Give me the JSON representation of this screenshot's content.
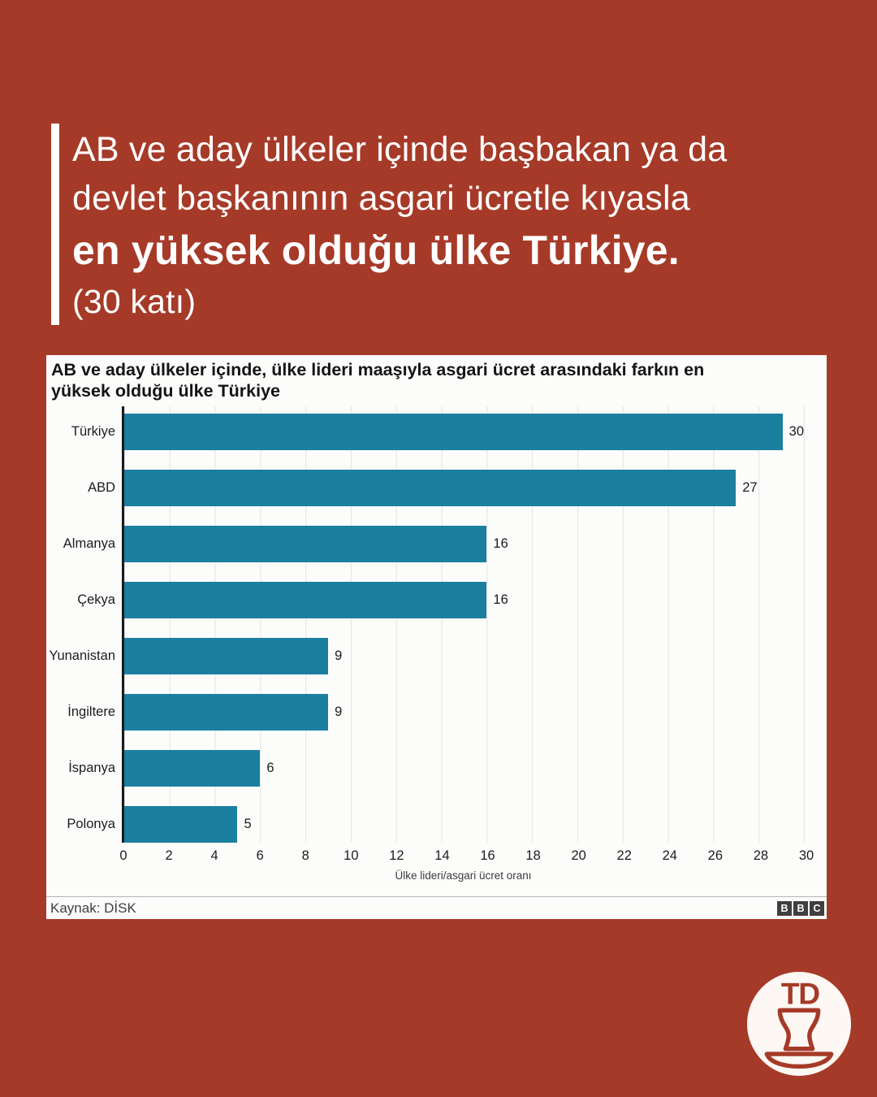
{
  "page": {
    "background_color": "#a63a28",
    "panel_color": "#fcfcfb"
  },
  "headline": {
    "line1": "AB ve aday ülkeler içinde başbakan ya da",
    "line2": "devlet başkanının asgari ücretle kıyasla",
    "line3": "en yüksek olduğu ülke Türkiye.",
    "line4": "(30 katı)"
  },
  "chart_panel": {
    "title_line1": "AB ve aday ülkeler içinde, ülke lideri maaşıyla asgari ücret arasındaki farkın en",
    "title_line2": "yüksek olduğu ülke Türkiye",
    "source": "Kaynak: DİSK",
    "bbc_logo_blocks": [
      "B",
      "B",
      "C"
    ]
  },
  "chart_data": {
    "type": "bar",
    "orientation": "horizontal",
    "title": "AB ve aday ülkeler içinde, ülke lideri maaşıyla asgari ücret arasındaki farkın en yüksek olduğu ülke Türkiye",
    "categories": [
      "Türkiye",
      "ABD",
      "Almanya",
      "Çekya",
      "Yunanistan",
      "İngiltere",
      "İspanya",
      "Polonya"
    ],
    "values": [
      30,
      27,
      16,
      16,
      9,
      9,
      6,
      5
    ],
    "xlabel": "Ülke lideri/asgari ücret oranı",
    "xlim": [
      0,
      30
    ],
    "xticks": [
      0,
      2,
      4,
      6,
      8,
      10,
      12,
      14,
      16,
      18,
      20,
      22,
      24,
      26,
      28,
      30
    ],
    "bar_color": "#1b7fa0",
    "grid": true,
    "legend": false,
    "source": "Kaynak: DİSK"
  },
  "logo": {
    "text": "TD"
  }
}
